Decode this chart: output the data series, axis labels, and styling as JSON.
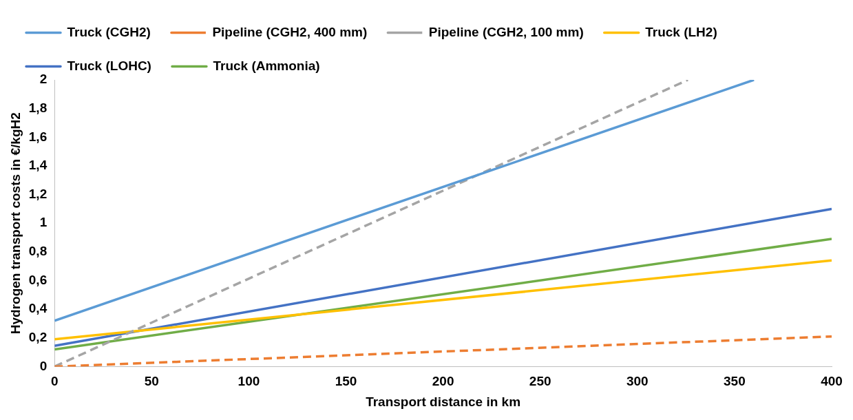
{
  "chart_data": {
    "type": "line",
    "xlabel": "Transport distance in km",
    "ylabel": "Hydrogen transport costs in €/kgH2",
    "xlim": [
      0,
      400
    ],
    "xticks": [
      0,
      50,
      100,
      150,
      200,
      250,
      300,
      350,
      400
    ],
    "ylim": [
      0,
      2
    ],
    "yticks": [
      0,
      {
        "value": 0.2,
        "label": "0,2"
      },
      {
        "value": 0.4,
        "label": "0,4"
      },
      {
        "value": 0.6,
        "label": "0,6"
      },
      {
        "value": 0.8,
        "label": "0,8"
      },
      1,
      {
        "value": 1.2,
        "label": "1,2"
      },
      {
        "value": 1.4,
        "label": "1,4"
      },
      {
        "value": 1.6,
        "label": "1,6"
      },
      {
        "value": 1.8,
        "label": "1,8"
      },
      2
    ],
    "grid": false,
    "legend": "top",
    "marker": "none",
    "series": [
      {
        "name": "Truck (CGH2)",
        "color": "#5b9bd5",
        "x": [
          0,
          360
        ],
        "values": [
          0.32,
          2.0
        ]
      },
      {
        "name": "Pipeline (CGH2, 400 mm)",
        "color": "#ed7d31",
        "line_style": "dashed",
        "x": [
          0,
          400
        ],
        "values": [
          0,
          0.21
        ]
      },
      {
        "name": "Pipeline (CGH2, 100 mm)",
        "color": "#a5a5a5",
        "line_style": "dashed",
        "x": [
          0,
          326
        ],
        "values": [
          0,
          2.0
        ]
      },
      {
        "name": "Truck (LH2)",
        "color": "#ffc000",
        "x": [
          0,
          400
        ],
        "values": [
          0.19,
          0.74
        ]
      },
      {
        "name": "Truck (LOHC)",
        "color": "#4472c4",
        "x": [
          0,
          400
        ],
        "values": [
          0.145,
          1.1
        ]
      },
      {
        "name": "Truck (Ammonia)",
        "color": "#70ad47",
        "x": [
          0,
          400
        ],
        "values": [
          0.12,
          0.89
        ]
      }
    ]
  }
}
